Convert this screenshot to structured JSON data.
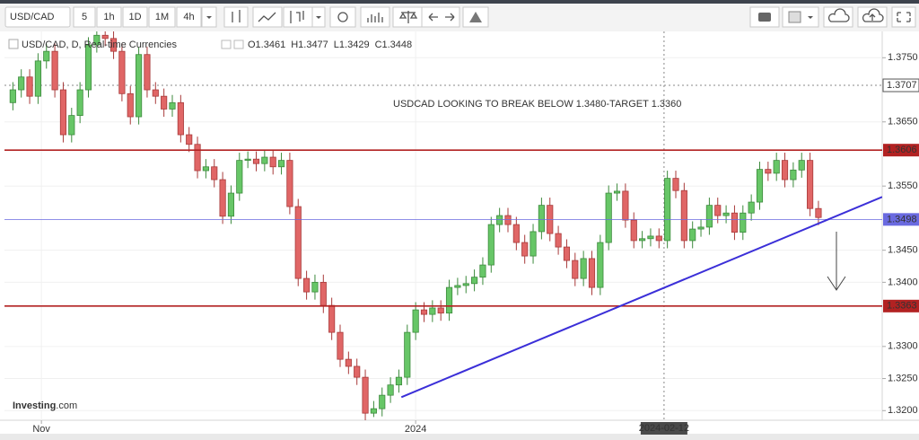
{
  "toolbar": {
    "symbol": "USD/CAD",
    "intervals": [
      "5",
      "1h",
      "1D",
      "1M",
      "4h"
    ],
    "active_interval": 2
  },
  "header": {
    "instrument": "USD/CAD, D, Real-time Currencies",
    "ohlc": [
      "O1.3461",
      "H1.3477",
      "L1.3429",
      "C1.3448"
    ]
  },
  "logo": {
    "name": "Investing",
    "suffix": ".com"
  },
  "chart_data": {
    "type": "candlestick",
    "annotation": "USDCAD LOOKING TO BREAK BELOW 1.3480-TARGET 1.3360",
    "up_color": "#67c667",
    "down_color": "#e06666",
    "up_edge": "#3c8a3c",
    "down_edge": "#a83a3a",
    "categories": [
      null,
      null,
      null,
      null,
      null,
      null,
      null,
      null,
      null,
      null,
      null,
      null,
      null,
      null,
      null,
      null,
      null,
      null,
      null,
      null,
      null,
      null,
      null,
      null,
      null,
      null,
      null,
      null,
      null,
      null,
      null,
      null,
      null,
      null,
      null,
      null,
      null,
      null,
      null,
      null,
      null,
      null,
      null,
      null,
      null,
      null,
      null,
      null,
      null,
      null,
      null,
      null,
      null,
      null,
      null,
      null,
      null,
      null,
      null,
      null,
      null,
      null,
      null,
      null,
      null,
      null,
      null,
      null,
      null,
      null,
      null,
      null,
      null,
      null,
      null,
      null,
      null,
      null,
      null,
      null,
      null,
      null,
      null,
      null,
      null,
      null,
      null,
      null,
      null,
      null,
      null,
      null,
      null,
      null,
      null,
      null,
      null
    ],
    "open": [
      1.368,
      1.37,
      1.372,
      1.369,
      1.3745,
      1.376,
      1.37,
      1.363,
      1.366,
      1.37,
      1.377,
      1.3785,
      1.378,
      1.376,
      1.3694,
      1.3658,
      1.3755,
      1.37,
      1.369,
      1.367,
      1.368,
      1.363,
      1.3615,
      1.3574,
      1.358,
      1.356,
      1.3503,
      1.3539,
      1.359,
      1.3592,
      1.3585,
      1.3595,
      1.358,
      1.359,
      1.3518,
      1.3406,
      1.3385,
      1.34,
      1.3364,
      1.3322,
      1.328,
      1.3269,
      1.3252,
      1.3196,
      1.3203,
      1.3224,
      1.324,
      1.3252,
      1.3322,
      1.3357,
      1.335,
      1.336,
      1.3352,
      1.3392,
      1.3395,
      1.3398,
      1.3408,
      1.3427,
      1.349,
      1.3504,
      1.349,
      1.3462,
      1.3441,
      1.3479,
      1.352,
      1.3476,
      1.3455,
      1.3434,
      1.3406,
      1.3437,
      1.3392,
      1.3462,
      1.3539,
      1.3542,
      1.3497,
      1.3465,
      1.3468,
      1.3472,
      1.3465,
      1.3562,
      1.3543,
      1.3465,
      1.3483,
      1.3486,
      1.352,
      1.3504,
      1.3508,
      1.3478,
      1.3508,
      1.3525,
      1.3576,
      1.357,
      1.359,
      1.356,
      1.3575,
      1.359,
      1.3515
    ],
    "high": [
      1.3712,
      1.3732,
      1.3732,
      1.3757,
      1.3772,
      1.3772,
      1.3712,
      1.3672,
      1.3712,
      1.3782,
      1.3797,
      1.3797,
      1.3792,
      1.3772,
      1.3706,
      1.3767,
      1.3767,
      1.3712,
      1.3702,
      1.3692,
      1.3692,
      1.3642,
      1.3627,
      1.3592,
      1.3592,
      1.3572,
      1.3551,
      1.3602,
      1.3604,
      1.3604,
      1.3607,
      1.3607,
      1.3602,
      1.3602,
      1.353,
      1.3418,
      1.3412,
      1.3412,
      1.3376,
      1.3334,
      1.3292,
      1.3281,
      1.3264,
      1.3215,
      1.3236,
      1.3252,
      1.3264,
      1.3334,
      1.3369,
      1.3369,
      1.3372,
      1.3372,
      1.3404,
      1.3407,
      1.341,
      1.342,
      1.3439,
      1.3502,
      1.3516,
      1.3516,
      1.3502,
      1.3474,
      1.3491,
      1.3532,
      1.3532,
      1.3488,
      1.3467,
      1.3446,
      1.3449,
      1.3449,
      1.3474,
      1.3551,
      1.3554,
      1.3554,
      1.3509,
      1.348,
      1.3484,
      1.3484,
      1.3574,
      1.3574,
      1.3555,
      1.3495,
      1.3498,
      1.3532,
      1.3532,
      1.352,
      1.352,
      1.352,
      1.3537,
      1.3588,
      1.3588,
      1.3602,
      1.3602,
      1.3587,
      1.3602,
      1.3602,
      1.3527
    ],
    "low": [
      1.3668,
      1.3688,
      1.3678,
      1.3678,
      1.3733,
      1.3688,
      1.3618,
      1.3618,
      1.3648,
      1.3688,
      1.3758,
      1.3768,
      1.3748,
      1.3682,
      1.3646,
      1.3646,
      1.3688,
      1.3678,
      1.3658,
      1.3658,
      1.3618,
      1.3603,
      1.3562,
      1.3562,
      1.3548,
      1.3491,
      1.3491,
      1.3527,
      1.3578,
      1.3573,
      1.3573,
      1.3568,
      1.3568,
      1.3506,
      1.3394,
      1.3373,
      1.3373,
      1.3352,
      1.331,
      1.3268,
      1.3257,
      1.324,
      1.3184,
      1.319,
      1.3191,
      1.3212,
      1.3228,
      1.324,
      1.331,
      1.3338,
      1.3338,
      1.334,
      1.334,
      1.338,
      1.3383,
      1.3386,
      1.3396,
      1.3415,
      1.3478,
      1.3478,
      1.345,
      1.3429,
      1.3429,
      1.3467,
      1.3464,
      1.3443,
      1.3422,
      1.3394,
      1.3394,
      1.338,
      1.338,
      1.345,
      1.3527,
      1.3485,
      1.3453,
      1.3453,
      1.3456,
      1.3453,
      1.3453,
      1.3531,
      1.3453,
      1.3453,
      1.3471,
      1.3474,
      1.3492,
      1.3492,
      1.3466,
      1.3466,
      1.3496,
      1.3513,
      1.3558,
      1.3558,
      1.3548,
      1.3548,
      1.3563,
      1.3503,
      1.3489
    ],
    "close": [
      1.37,
      1.372,
      1.369,
      1.3745,
      1.376,
      1.37,
      1.363,
      1.366,
      1.37,
      1.377,
      1.3785,
      1.378,
      1.376,
      1.3694,
      1.3658,
      1.3755,
      1.37,
      1.369,
      1.367,
      1.368,
      1.363,
      1.3615,
      1.3574,
      1.358,
      1.356,
      1.3503,
      1.3539,
      1.359,
      1.3592,
      1.3585,
      1.3595,
      1.358,
      1.359,
      1.3518,
      1.3406,
      1.3385,
      1.34,
      1.3364,
      1.3322,
      1.328,
      1.3269,
      1.3252,
      1.3196,
      1.3203,
      1.3224,
      1.324,
      1.3252,
      1.3322,
      1.3357,
      1.335,
      1.336,
      1.3352,
      1.3392,
      1.3395,
      1.3398,
      1.3408,
      1.3427,
      1.349,
      1.3504,
      1.349,
      1.3462,
      1.3441,
      1.3479,
      1.352,
      1.3476,
      1.3455,
      1.3434,
      1.3406,
      1.3437,
      1.3392,
      1.3462,
      1.3539,
      1.3542,
      1.3497,
      1.3465,
      1.3468,
      1.3472,
      1.3465,
      1.3562,
      1.3543,
      1.3465,
      1.3483,
      1.3486,
      1.352,
      1.3504,
      1.3508,
      1.3478,
      1.3508,
      1.3525,
      1.3576,
      1.357,
      1.359,
      1.356,
      1.3575,
      1.359,
      1.3515,
      1.3501
    ],
    "xlim": [
      -1,
      103.6
    ],
    "xticks": [
      {
        "value": 3.4,
        "label": "Nov"
      },
      {
        "value": 48,
        "label": "2024"
      }
    ],
    "ylim": [
      1.3185,
      1.3791
    ],
    "yticks": [
      {
        "value": 1.375,
        "label": "1.3750"
      },
      {
        "value": 1.365,
        "label": "1.3650"
      },
      {
        "value": 1.355,
        "label": "1.3550"
      },
      {
        "value": 1.345,
        "label": "1.3450"
      },
      {
        "value": 1.34,
        "label": "1.3400"
      },
      {
        "value": 1.33,
        "label": "1.3300"
      },
      {
        "value": 1.325,
        "label": "1.3250"
      },
      {
        "value": 1.32,
        "label": "1.3200"
      }
    ],
    "grid": true,
    "levels": [
      {
        "value": 1.3606,
        "color": "#b22222"
      },
      {
        "value": 1.3363,
        "color": "#b22222"
      },
      {
        "value": 1.3498,
        "color": "#6a6ae0"
      }
    ],
    "crosshair": {
      "x": {
        "value": 77.6,
        "label": "2024-02-12"
      },
      "y": 1.3707
    },
    "trendline": {
      "x": [
        46.3,
        103.6
      ],
      "y": [
        1.3221,
        1.3533
      ],
      "color": "#3b2fd8"
    }
  }
}
